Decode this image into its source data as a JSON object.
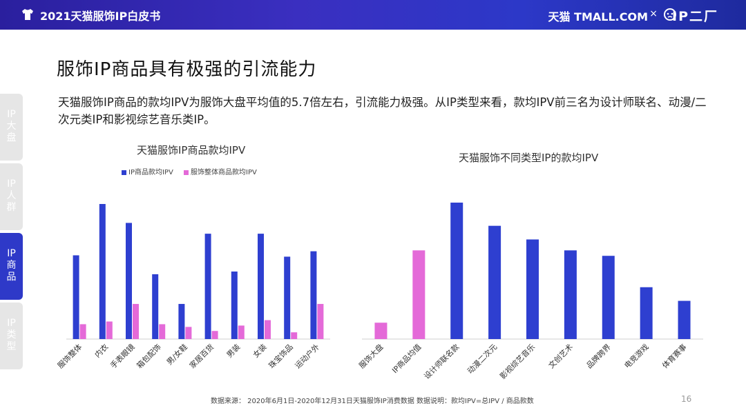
{
  "header": {
    "title": "2021天猫服饰IP白皮书",
    "brand": "天猫 TMALL.COM",
    "times": "×",
    "ip_logo": "IP二厂",
    "colors": {
      "start": "#2a1f9e",
      "end": "#1e2a9e"
    },
    "icons": [
      "tshirt-icon",
      "ip-face-icon"
    ]
  },
  "sidebar": {
    "items": [
      {
        "label": "IP大盘",
        "active": false
      },
      {
        "label": "IP人群",
        "active": false
      },
      {
        "label": "IP商品",
        "active": true
      },
      {
        "label": "IP类型",
        "active": false
      }
    ]
  },
  "main": {
    "title": "服饰IP商品具有极强的引流能力",
    "description": "天猫服饰IP商品的款均IPV为服饰大盘平均值的5.7倍左右，引流能力极强。从IP类型来看，款均IPV前三名为设计师联名、动漫/二次元类IP和影视综艺音乐类IP。"
  },
  "chart_data": [
    {
      "type": "bar",
      "title": "天猫服饰IP商品款均IPV",
      "categories": [
        "服饰整体",
        "内衣",
        "手表眼镜",
        "箱包配饰",
        "男/女鞋",
        "家居百货",
        "男装",
        "女装",
        "珠宝饰品",
        "运动户外"
      ],
      "series": [
        {
          "name": "IP商品款均IPV",
          "color": "#2e3fd0",
          "values": [
            62,
            100,
            86,
            48,
            26,
            78,
            50,
            78,
            61,
            65
          ]
        },
        {
          "name": "服饰整体商品款均IPV",
          "color": "#e46ad8",
          "values": [
            11,
            13,
            26,
            11,
            9,
            6,
            10,
            14,
            5,
            26
          ]
        }
      ],
      "legend": "top",
      "grid": false
    },
    {
      "type": "bar",
      "title": "天猫服饰不同类型IP的款均IPV",
      "categories": [
        "服饰大盘",
        "IP商品均值",
        "设计师联名款",
        "动漫二次元",
        "影视综艺音乐",
        "文创艺术",
        "品牌跨界",
        "电竞游戏",
        "体育赛事"
      ],
      "values": [
        12,
        65,
        100,
        83,
        73,
        65,
        61,
        38,
        28
      ],
      "colors": [
        "#e46ad8",
        "#e46ad8",
        "#2e3fd0",
        "#2e3fd0",
        "#2e3fd0",
        "#2e3fd0",
        "#2e3fd0",
        "#2e3fd0",
        "#2e3fd0"
      ],
      "grid": false
    }
  ],
  "footer": {
    "source": "数据来源： 2020年6月1日-2020年12月31日天猫服饰IP消费数据   数据说明：款均IPV=总IPV / 商品款数",
    "page_number": "16"
  }
}
